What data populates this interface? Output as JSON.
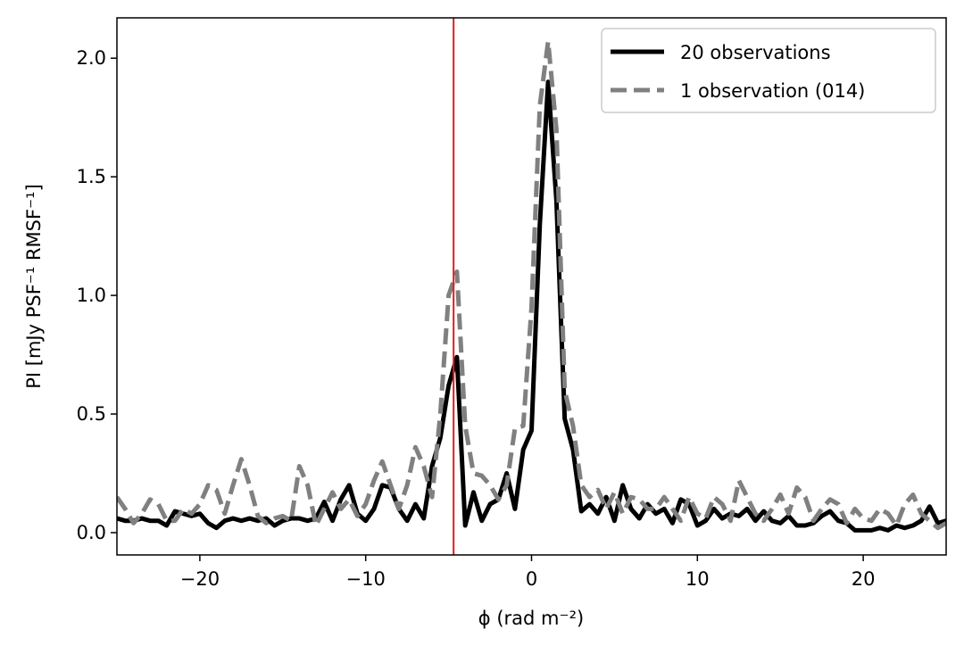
{
  "chart_data": {
    "type": "line",
    "xlabel": "ϕ (rad m⁻²)",
    "ylabel": "PI [mJy PSF⁻¹ RMSF⁻¹]",
    "x": [
      -25,
      -24.5,
      -24,
      -23.5,
      -23,
      -22.5,
      -22,
      -21.5,
      -21,
      -20.5,
      -20,
      -19.5,
      -19,
      -18.5,
      -18,
      -17.5,
      -17,
      -16.5,
      -16,
      -15.5,
      -15,
      -14.5,
      -14,
      -13.5,
      -13,
      -12.5,
      -12,
      -11.5,
      -11,
      -10.5,
      -10,
      -9.5,
      -9,
      -8.5,
      -8,
      -7.5,
      -7,
      -6.5,
      -6,
      -5.5,
      -5,
      -4.5,
      -4,
      -3.5,
      -3,
      -2.5,
      -2,
      -1.5,
      -1,
      -0.5,
      0,
      0.5,
      1,
      1.5,
      2,
      2.5,
      3,
      3.5,
      4,
      4.5,
      5,
      5.5,
      6,
      6.5,
      7,
      7.5,
      8,
      8.5,
      9,
      9.5,
      10,
      10.5,
      11,
      11.5,
      12,
      12.5,
      13,
      13.5,
      14,
      14.5,
      15,
      15.5,
      16,
      16.5,
      17,
      17.5,
      18,
      18.5,
      19,
      19.5,
      20,
      20.5,
      21,
      21.5,
      22,
      22.5,
      23,
      23.5,
      24,
      24.5,
      25
    ],
    "series": [
      {
        "name": "20 observations",
        "color": "#000000",
        "dash": "solid",
        "values": [
          0.06,
          0.05,
          0.05,
          0.06,
          0.05,
          0.05,
          0.03,
          0.09,
          0.08,
          0.07,
          0.08,
          0.04,
          0.02,
          0.05,
          0.06,
          0.05,
          0.06,
          0.05,
          0.06,
          0.03,
          0.05,
          0.06,
          0.06,
          0.05,
          0.06,
          0.13,
          0.05,
          0.14,
          0.2,
          0.08,
          0.05,
          0.1,
          0.2,
          0.19,
          0.1,
          0.05,
          0.12,
          0.06,
          0.28,
          0.4,
          0.62,
          0.74,
          0.03,
          0.17,
          0.05,
          0.12,
          0.14,
          0.25,
          0.1,
          0.35,
          0.43,
          1.3,
          1.9,
          1.4,
          0.48,
          0.35,
          0.09,
          0.12,
          0.08,
          0.15,
          0.05,
          0.2,
          0.1,
          0.06,
          0.12,
          0.08,
          0.1,
          0.04,
          0.14,
          0.12,
          0.03,
          0.05,
          0.1,
          0.06,
          0.08,
          0.07,
          0.1,
          0.05,
          0.09,
          0.05,
          0.04,
          0.07,
          0.03,
          0.03,
          0.04,
          0.07,
          0.09,
          0.05,
          0.04,
          0.01,
          0.01,
          0.01,
          0.02,
          0.01,
          0.03,
          0.02,
          0.03,
          0.05,
          0.11,
          0.04,
          0.05
        ]
      },
      {
        "name": "1 observation (014)",
        "color": "#808080",
        "dash": "dashed",
        "values": [
          0.15,
          0.1,
          0.04,
          0.08,
          0.14,
          0.12,
          0.05,
          0.05,
          0.1,
          0.08,
          0.12,
          0.2,
          0.18,
          0.08,
          0.2,
          0.31,
          0.2,
          0.07,
          0.04,
          0.06,
          0.07,
          0.05,
          0.28,
          0.2,
          0.03,
          0.1,
          0.17,
          0.1,
          0.14,
          0.07,
          0.12,
          0.22,
          0.3,
          0.2,
          0.1,
          0.2,
          0.36,
          0.28,
          0.15,
          0.5,
          1.0,
          1.1,
          0.45,
          0.25,
          0.24,
          0.2,
          0.14,
          0.2,
          0.44,
          0.45,
          0.95,
          1.8,
          2.07,
          1.7,
          0.6,
          0.45,
          0.2,
          0.15,
          0.18,
          0.1,
          0.17,
          0.08,
          0.15,
          0.14,
          0.1,
          0.1,
          0.15,
          0.1,
          0.05,
          0.15,
          0.08,
          0.06,
          0.15,
          0.12,
          0.05,
          0.22,
          0.15,
          0.08,
          0.05,
          0.1,
          0.16,
          0.08,
          0.19,
          0.15,
          0.05,
          0.1,
          0.14,
          0.12,
          0.04,
          0.1,
          0.06,
          0.05,
          0.1,
          0.08,
          0.03,
          0.12,
          0.16,
          0.08,
          0.05,
          0.02,
          0.04
        ]
      }
    ],
    "vline": {
      "value": -4.7,
      "color": "#e41a1c"
    },
    "xlim": [
      -25,
      25
    ],
    "ylim": [
      -0.094,
      2.17
    ],
    "xticks": [
      {
        "value": -20,
        "label": "−20"
      },
      {
        "value": -10,
        "label": "−10"
      },
      0,
      10,
      20
    ],
    "yticks": [
      {
        "value": 0,
        "label": "0.0"
      },
      {
        "value": 0.5,
        "label": "0.5"
      },
      {
        "value": 1,
        "label": "1.0"
      },
      {
        "value": 1.5,
        "label": "1.5"
      },
      {
        "value": 2,
        "label": "2.0"
      }
    ],
    "legend": "upper right"
  }
}
